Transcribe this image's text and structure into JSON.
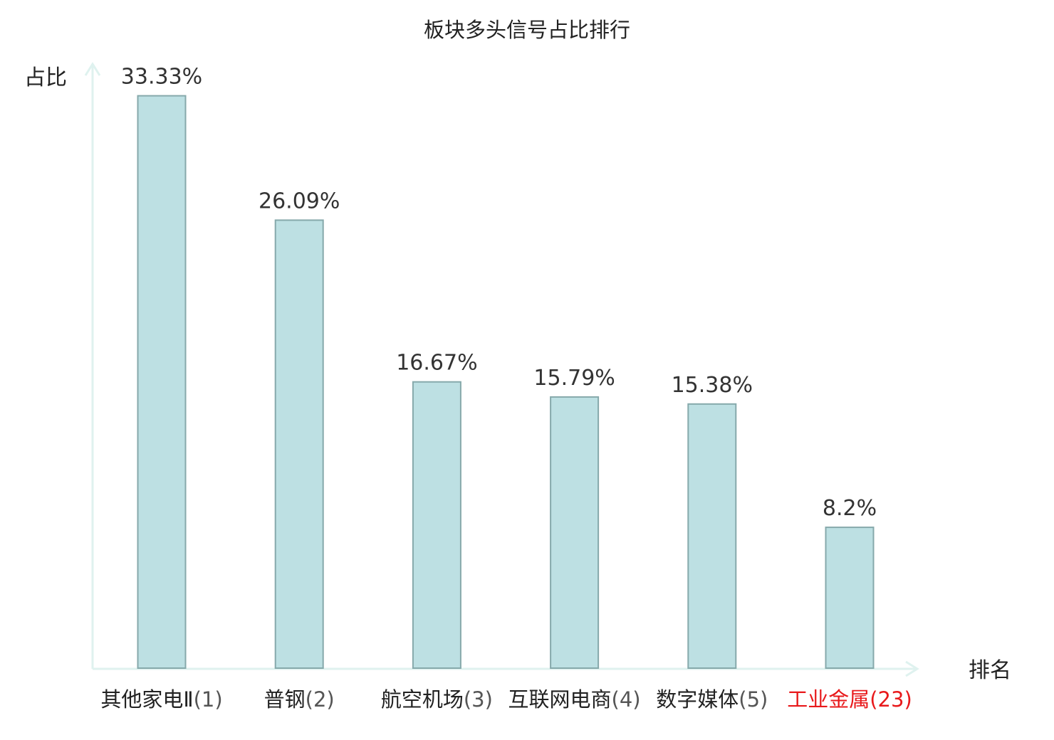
{
  "chart_data": {
    "type": "bar",
    "title": "板块多头信号占比排行",
    "ylabel": "占比",
    "xlabel": "排名",
    "ylim": [
      0,
      34.6
    ],
    "grid": false,
    "categories": [
      {
        "name": "其他家电Ⅱ",
        "rank": "(1)",
        "highlight": false
      },
      {
        "name": "普钢",
        "rank": "(2)",
        "highlight": false
      },
      {
        "name": "航空机场",
        "rank": "(3)",
        "highlight": false
      },
      {
        "name": "互联网电商",
        "rank": "(4)",
        "highlight": false
      },
      {
        "name": "数字媒体",
        "rank": "(5)",
        "highlight": false
      },
      {
        "name": "工业金属",
        "rank": "(23)",
        "highlight": true
      }
    ],
    "values": [
      33.33,
      26.09,
      16.67,
      15.79,
      15.38,
      8.2
    ],
    "value_labels": [
      "33.33%",
      "26.09%",
      "16.67%",
      "15.79%",
      "15.38%",
      "8.2%"
    ],
    "colors": {
      "bar_fill": "#bde0e3",
      "bar_stroke": "#86a9ab",
      "axis": "#dff2ef",
      "text": "#222222",
      "rank_text": "#555555",
      "highlight": "#e8191b"
    }
  }
}
